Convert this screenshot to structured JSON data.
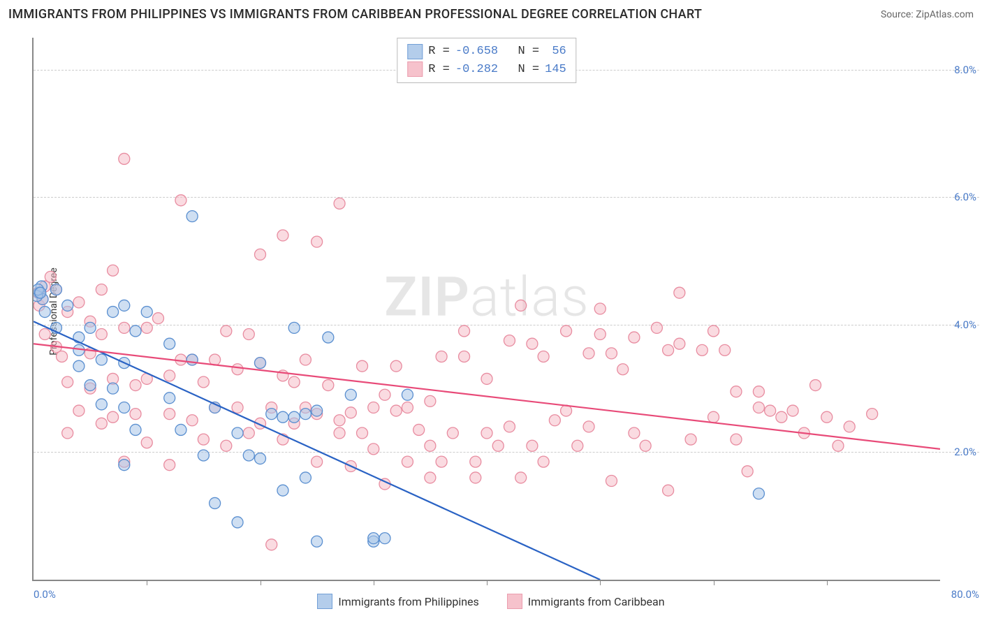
{
  "title": "IMMIGRANTS FROM PHILIPPINES VS IMMIGRANTS FROM CARIBBEAN PROFESSIONAL DEGREE CORRELATION CHART",
  "source": "Source: ZipAtlas.com",
  "y_axis_label": "Professional Degree",
  "watermark": "ZIPatlas",
  "chart": {
    "type": "scatter",
    "xlim": [
      0,
      80
    ],
    "ylim": [
      0,
      8.5
    ],
    "y_ticks": [
      2.0,
      4.0,
      6.0,
      8.0
    ],
    "y_tick_labels": [
      "2.0%",
      "4.0%",
      "6.0%",
      "8.0%"
    ],
    "x_ticks": [
      10,
      20,
      30,
      40,
      50,
      60,
      70
    ],
    "x_min_label": "0.0%",
    "x_max_label": "80.0%",
    "background_color": "#ffffff",
    "grid_color": "#cccccc",
    "axis_color": "#888888",
    "tick_label_color": "#4a7bc8",
    "marker_radius": 8,
    "regression_line_width": 2.2,
    "series": [
      {
        "name": "Immigrants from Philippines",
        "fill_color": "#a8c5e8",
        "fill_opacity": 0.55,
        "stroke_color": "#5a8fd0",
        "line_color": "#2962c4",
        "R": "-0.658",
        "N": "56",
        "regression": {
          "x1": 0,
          "y1": 4.05,
          "x2": 50,
          "y2": 0
        },
        "points": [
          [
            0.5,
            4.5
          ],
          [
            0.7,
            4.6
          ],
          [
            0.8,
            4.4
          ],
          [
            0.3,
            4.45
          ],
          [
            0.4,
            4.55
          ],
          [
            0.6,
            4.5
          ],
          [
            1.0,
            4.2
          ],
          [
            2,
            4.55
          ],
          [
            2,
            3.95
          ],
          [
            3,
            4.3
          ],
          [
            4,
            3.6
          ],
          [
            4,
            3.8
          ],
          [
            5,
            3.05
          ],
          [
            5,
            3.95
          ],
          [
            6,
            3.45
          ],
          [
            6,
            2.75
          ],
          [
            7,
            4.2
          ],
          [
            7,
            3.0
          ],
          [
            8,
            4.3
          ],
          [
            8,
            3.4
          ],
          [
            8,
            2.7
          ],
          [
            8,
            1.8
          ],
          [
            9,
            3.9
          ],
          [
            9,
            2.35
          ],
          [
            10,
            4.2
          ],
          [
            4,
            3.35
          ],
          [
            12,
            2.85
          ],
          [
            12,
            3.7
          ],
          [
            13,
            2.35
          ],
          [
            14,
            5.7
          ],
          [
            14,
            3.45
          ],
          [
            15,
            1.95
          ],
          [
            16,
            1.2
          ],
          [
            16,
            2.7
          ],
          [
            18,
            2.3
          ],
          [
            18,
            0.9
          ],
          [
            19,
            1.95
          ],
          [
            20,
            1.9
          ],
          [
            20,
            3.4
          ],
          [
            21,
            2.6
          ],
          [
            22,
            2.55
          ],
          [
            22,
            1.4
          ],
          [
            23,
            2.55
          ],
          [
            23,
            3.95
          ],
          [
            24,
            2.6
          ],
          [
            24,
            1.6
          ],
          [
            25,
            2.65
          ],
          [
            25,
            0.6
          ],
          [
            26,
            3.8
          ],
          [
            28,
            2.9
          ],
          [
            30,
            0.6
          ],
          [
            30,
            0.65
          ],
          [
            31,
            0.65
          ],
          [
            33,
            2.9
          ],
          [
            64,
            1.35
          ]
        ]
      },
      {
        "name": "Immigrants from Caribbean",
        "fill_color": "#f5b8c4",
        "fill_opacity": 0.5,
        "stroke_color": "#e88ca0",
        "line_color": "#e84a78",
        "R": "-0.282",
        "N": "145",
        "regression": {
          "x1": 0,
          "y1": 3.7,
          "x2": 80,
          "y2": 2.05
        },
        "points": [
          [
            0.4,
            4.5
          ],
          [
            0.5,
            4.3
          ],
          [
            0.8,
            4.4
          ],
          [
            1.0,
            4.6
          ],
          [
            1,
            3.85
          ],
          [
            1.5,
            4.75
          ],
          [
            2,
            4.55
          ],
          [
            2,
            3.65
          ],
          [
            2.5,
            3.5
          ],
          [
            3,
            3.1
          ],
          [
            3,
            4.2
          ],
          [
            3,
            2.3
          ],
          [
            4,
            4.35
          ],
          [
            4,
            2.65
          ],
          [
            5,
            3.55
          ],
          [
            5,
            3.0
          ],
          [
            5,
            4.05
          ],
          [
            6,
            4.55
          ],
          [
            6,
            2.45
          ],
          [
            6,
            3.85
          ],
          [
            7,
            4.85
          ],
          [
            7,
            3.15
          ],
          [
            7,
            2.55
          ],
          [
            8,
            6.6
          ],
          [
            8,
            3.95
          ],
          [
            8,
            1.85
          ],
          [
            9,
            3.05
          ],
          [
            9,
            2.6
          ],
          [
            10,
            3.95
          ],
          [
            10,
            3.15
          ],
          [
            10,
            2.15
          ],
          [
            11,
            4.1
          ],
          [
            12,
            3.2
          ],
          [
            12,
            1.8
          ],
          [
            12,
            2.6
          ],
          [
            13,
            3.45
          ],
          [
            13,
            5.95
          ],
          [
            14,
            2.5
          ],
          [
            14,
            3.45
          ],
          [
            15,
            3.1
          ],
          [
            15,
            2.2
          ],
          [
            16,
            3.45
          ],
          [
            16,
            2.7
          ],
          [
            17,
            2.1
          ],
          [
            17,
            3.9
          ],
          [
            18,
            2.7
          ],
          [
            18,
            3.3
          ],
          [
            19,
            3.85
          ],
          [
            19,
            2.3
          ],
          [
            20,
            5.1
          ],
          [
            20,
            3.4
          ],
          [
            20,
            2.45
          ],
          [
            21,
            2.7
          ],
          [
            21,
            0.55
          ],
          [
            22,
            5.4
          ],
          [
            22,
            2.2
          ],
          [
            22,
            3.2
          ],
          [
            23,
            3.1
          ],
          [
            23,
            2.45
          ],
          [
            24,
            3.45
          ],
          [
            24,
            2.7
          ],
          [
            25,
            2.6
          ],
          [
            25,
            5.3
          ],
          [
            25,
            1.85
          ],
          [
            26,
            3.05
          ],
          [
            27,
            2.5
          ],
          [
            27,
            2.3
          ],
          [
            27,
            5.9
          ],
          [
            28,
            2.62
          ],
          [
            28,
            1.78
          ],
          [
            29,
            2.3
          ],
          [
            29,
            3.35
          ],
          [
            30,
            2.05
          ],
          [
            30,
            2.7
          ],
          [
            31,
            1.5
          ],
          [
            31,
            2.9
          ],
          [
            32,
            2.65
          ],
          [
            32,
            3.35
          ],
          [
            33,
            1.85
          ],
          [
            33,
            2.7
          ],
          [
            34,
            2.35
          ],
          [
            35,
            2.1
          ],
          [
            35,
            1.6
          ],
          [
            35,
            2.8
          ],
          [
            36,
            3.5
          ],
          [
            36,
            1.85
          ],
          [
            37,
            2.3
          ],
          [
            38,
            3.9
          ],
          [
            38,
            3.5
          ],
          [
            39,
            1.6
          ],
          [
            39,
            1.85
          ],
          [
            40,
            3.15
          ],
          [
            40,
            2.3
          ],
          [
            41,
            2.1
          ],
          [
            42,
            3.75
          ],
          [
            42,
            2.4
          ],
          [
            43,
            4.3
          ],
          [
            43,
            1.6
          ],
          [
            44,
            2.1
          ],
          [
            44,
            3.7
          ],
          [
            45,
            3.5
          ],
          [
            45,
            1.85
          ],
          [
            46,
            2.5
          ],
          [
            47,
            2.65
          ],
          [
            47,
            3.9
          ],
          [
            48,
            2.1
          ],
          [
            49,
            3.55
          ],
          [
            49,
            2.4
          ],
          [
            50,
            3.85
          ],
          [
            50,
            4.25
          ],
          [
            51,
            3.55
          ],
          [
            51,
            1.55
          ],
          [
            52,
            3.3
          ],
          [
            53,
            3.8
          ],
          [
            53,
            2.3
          ],
          [
            54,
            2.1
          ],
          [
            55,
            3.95
          ],
          [
            56,
            1.4
          ],
          [
            56,
            3.6
          ],
          [
            57,
            3.7
          ],
          [
            57,
            4.5
          ],
          [
            58,
            2.2
          ],
          [
            59,
            3.6
          ],
          [
            60,
            2.55
          ],
          [
            60,
            3.9
          ],
          [
            61,
            3.6
          ],
          [
            62,
            2.2
          ],
          [
            62,
            2.95
          ],
          [
            63,
            1.7
          ],
          [
            64,
            2.7
          ],
          [
            64,
            2.95
          ],
          [
            65,
            2.65
          ],
          [
            66,
            2.55
          ],
          [
            67,
            2.65
          ],
          [
            68,
            2.3
          ],
          [
            69,
            3.05
          ],
          [
            70,
            2.55
          ],
          [
            71,
            2.1
          ],
          [
            72,
            2.4
          ],
          [
            74,
            2.6
          ]
        ]
      }
    ]
  },
  "bottom_legend": [
    {
      "label": "Immigrants from Philippines",
      "fill": "#a8c5e8",
      "stroke": "#5a8fd0"
    },
    {
      "label": "Immigrants from Caribbean",
      "fill": "#f5b8c4",
      "stroke": "#e88ca0"
    }
  ]
}
